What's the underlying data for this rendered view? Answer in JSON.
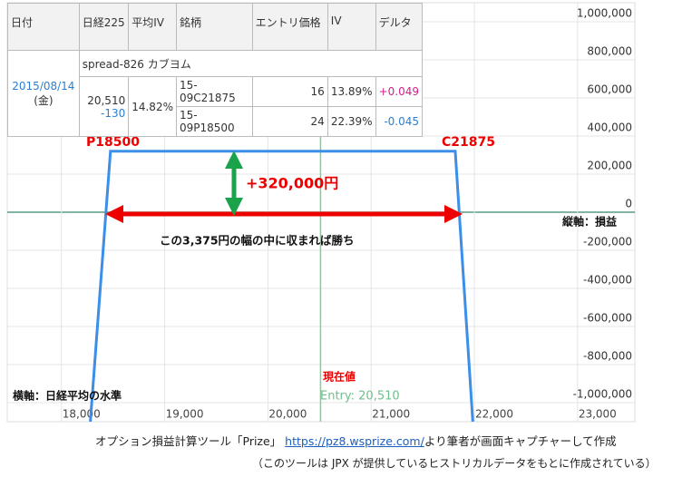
{
  "chart_data": {
    "type": "line",
    "x": [
      18280,
      18475,
      21815,
      21985
    ],
    "series": [
      {
        "color": "#3b8fe8",
        "values": [
          -1100000,
          320000,
          320000,
          -1100000
        ]
      }
    ],
    "xlim": [
      17475,
      23555
    ],
    "xticks": [
      {
        "value": 18000,
        "label": "18,000"
      },
      {
        "value": 19000,
        "label": "19,000"
      },
      {
        "value": 20000,
        "label": "20,000"
      },
      {
        "value": 21000,
        "label": "21,000"
      },
      {
        "value": 22000,
        "label": "22,000"
      },
      {
        "value": 23000,
        "label": "23,000"
      }
    ],
    "ylim": [
      -1100000,
      1100000
    ],
    "yticks": [
      {
        "value": 1000000,
        "label": "1,000,000"
      },
      {
        "value": 800000,
        "label": "800,000"
      },
      {
        "value": 600000,
        "label": "600,000"
      },
      {
        "value": 400000,
        "label": "400,000"
      },
      {
        "value": 200000,
        "label": "200,000"
      },
      0,
      {
        "value": -200000,
        "label": "-200,000"
      },
      {
        "value": -400000,
        "label": "-400,000"
      },
      {
        "value": -600000,
        "label": "-600,000"
      },
      {
        "value": -800000,
        "label": "-800,000"
      },
      {
        "value": -1000000,
        "label": "-1,000,000"
      }
    ],
    "grid": true,
    "current": {
      "value": 20510,
      "label": "Entry: 20,510"
    },
    "annotations": {
      "put": "P18500",
      "call": "C21875",
      "profit": "+320,000円",
      "range": "この3,375円の幅の中に収まれば勝ち",
      "y_axis": "縦軸：損益",
      "x_axis": "横軸：日経平均の水準",
      "current_title": "現在値"
    }
  },
  "table": {
    "header": [
      "日付",
      "日経225",
      "平均IV",
      "銘柄",
      "エントリ価格",
      "IV",
      "デルタ"
    ],
    "spread": "spread-826 カブヨム",
    "date": "2015/08/14",
    "weekday": "(金)",
    "nikkei": "20,510",
    "change": "-130",
    "avg_iv": "14.82%",
    "rows": [
      [
        "15-09C21875",
        "16",
        "13.89%",
        "+0.049"
      ],
      [
        "15-09P18500",
        "24",
        "22.39%",
        "-0.045"
      ]
    ]
  },
  "caption": {
    "prefix": "オプション損益計算ツール「Prize」 ",
    "link": "https://pz8.wsprize.com/",
    "suffix": "より筆者が画面キャプチャーして作成",
    "note": "（このツールは JPX が提供しているヒストリカルデータをもとに作成されている）"
  }
}
